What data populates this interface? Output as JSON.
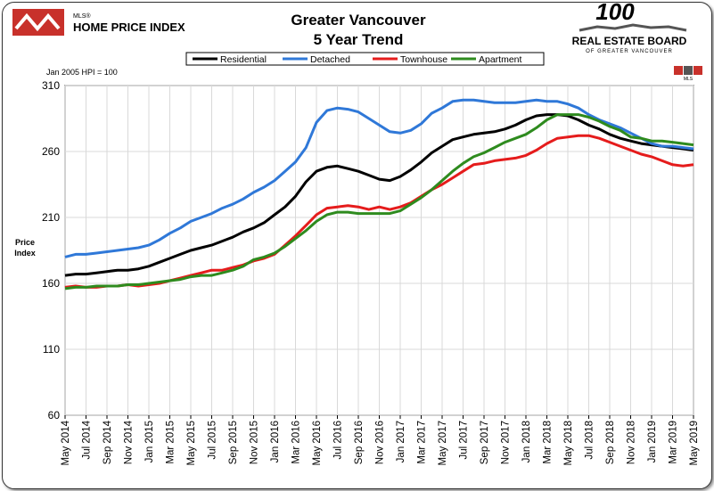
{
  "header": {
    "logo_small": "MLS®",
    "logo_main": "HOME PRICE INDEX",
    "board_line1": "100",
    "board_line2": "REAL ESTATE BOARD",
    "board_line3": "OF GREATER VANCOUVER",
    "mls_badge": "MLS"
  },
  "chart_data": {
    "type": "line",
    "title": "Greater Vancouver",
    "subtitle": "5 Year Trend",
    "note": "Jan 2005 HPI = 100",
    "ylabel": "Price\nIndex",
    "xlabel": "",
    "ylim": [
      60,
      310
    ],
    "yticks": [
      60,
      110,
      160,
      210,
      260,
      310
    ],
    "grid": true,
    "legend_position": "top",
    "x_tick_labels": [
      "May 2014",
      "Jul 2014",
      "Sep 2014",
      "Nov 2014",
      "Jan 2015",
      "Mar 2015",
      "May 2015",
      "Jul 2015",
      "Sep 2015",
      "Nov 2015",
      "Jan 2016",
      "Mar 2016",
      "May 2016",
      "Jul 2016",
      "Sep 2016",
      "Nov 2016",
      "Jan 2017",
      "Mar 2017",
      "May 2017",
      "Jul 2017",
      "Sep 2017",
      "Nov 2017",
      "Jan 2018",
      "Mar 2018",
      "May 2018",
      "Jul 2018",
      "Sep 2018",
      "Nov 2018",
      "Jan 2019",
      "Mar 2019",
      "May 2019"
    ],
    "series": [
      {
        "name": "Residential",
        "color": "#000000",
        "values": [
          166,
          167,
          167,
          168,
          169,
          170,
          170,
          171,
          173,
          176,
          179,
          182,
          185,
          187,
          189,
          192,
          195,
          199,
          202,
          206,
          212,
          218,
          226,
          237,
          245,
          248,
          249,
          247,
          245,
          242,
          239,
          238,
          241,
          246,
          252,
          259,
          264,
          269,
          271,
          273,
          274,
          275,
          277,
          280,
          284,
          287,
          288,
          288,
          287,
          284,
          280,
          277,
          273,
          270,
          268,
          266,
          265,
          264,
          263,
          262,
          261
        ]
      },
      {
        "name": "Detached",
        "color": "#2f78d8",
        "values": [
          180,
          182,
          182,
          183,
          184,
          185,
          186,
          187,
          189,
          193,
          198,
          202,
          207,
          210,
          213,
          217,
          220,
          224,
          229,
          233,
          238,
          245,
          252,
          263,
          282,
          291,
          293,
          292,
          290,
          285,
          280,
          275,
          274,
          276,
          281,
          289,
          293,
          298,
          299,
          299,
          298,
          297,
          297,
          297,
          298,
          299,
          298,
          298,
          296,
          293,
          288,
          284,
          281,
          278,
          274,
          270,
          266,
          264,
          264,
          263,
          262
        ]
      },
      {
        "name": "Townhouse",
        "color": "#e51c1c",
        "values": [
          157,
          158,
          157,
          157,
          158,
          158,
          159,
          158,
          159,
          160,
          162,
          164,
          166,
          168,
          170,
          170,
          172,
          174,
          177,
          179,
          182,
          189,
          196,
          204,
          212,
          217,
          218,
          219,
          218,
          216,
          218,
          216,
          218,
          221,
          226,
          231,
          235,
          240,
          245,
          250,
          251,
          253,
          254,
          255,
          257,
          261,
          266,
          270,
          271,
          272,
          272,
          270,
          267,
          264,
          261,
          258,
          256,
          253,
          250,
          249,
          250
        ]
      },
      {
        "name": "Apartment",
        "color": "#2e8b1e",
        "values": [
          156,
          157,
          157,
          158,
          158,
          158,
          159,
          159,
          160,
          161,
          162,
          163,
          165,
          166,
          166,
          168,
          170,
          173,
          178,
          180,
          183,
          188,
          194,
          200,
          207,
          212,
          214,
          214,
          213,
          213,
          213,
          213,
          215,
          220,
          225,
          231,
          238,
          245,
          251,
          256,
          259,
          263,
          267,
          270,
          273,
          278,
          284,
          288,
          288,
          288,
          286,
          283,
          279,
          276,
          271,
          270,
          268,
          268,
          267,
          266,
          265
        ]
      }
    ]
  }
}
